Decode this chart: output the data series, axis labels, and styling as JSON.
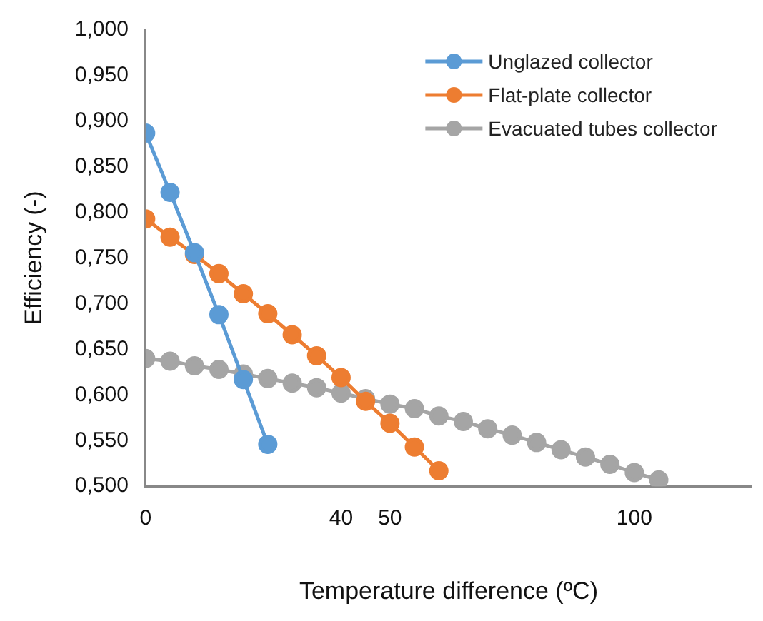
{
  "chart_data": {
    "type": "line",
    "xlabel": "Temperature difference (ºC)",
    "ylabel": "Efficiency (-)",
    "xlim": [
      0,
      124
    ],
    "xticks": [
      0,
      40,
      50,
      100
    ],
    "ylim": [
      0.5,
      1.0
    ],
    "yticks": [
      {
        "value": 0.5,
        "label": "0,500"
      },
      {
        "value": 0.55,
        "label": "0,550"
      },
      {
        "value": 0.6,
        "label": "0,600"
      },
      {
        "value": 0.65,
        "label": "0,650"
      },
      {
        "value": 0.7,
        "label": "0,700"
      },
      {
        "value": 0.75,
        "label": "0,750"
      },
      {
        "value": 0.8,
        "label": "0,800"
      },
      {
        "value": 0.85,
        "label": "0,850"
      },
      {
        "value": 0.9,
        "label": "0,900"
      },
      {
        "value": 0.95,
        "label": "0,950"
      },
      {
        "value": 1.0,
        "label": "1,000"
      }
    ],
    "grid": false,
    "legend": "top right",
    "marker": "circle",
    "line_style": "solid",
    "series": [
      {
        "name": "Unglazed collector",
        "color": "#5b9bd5",
        "x": [
          0,
          5,
          10,
          15,
          20,
          25
        ],
        "values": [
          0.887,
          0.822,
          0.756,
          0.688,
          0.617,
          0.546
        ]
      },
      {
        "name": "Flat-plate collector",
        "color": "#ed7d31",
        "x": [
          0,
          5,
          10,
          15,
          20,
          25,
          30,
          35,
          40,
          45,
          50,
          55,
          60
        ],
        "values": [
          0.793,
          0.773,
          0.754,
          0.733,
          0.711,
          0.689,
          0.666,
          0.643,
          0.619,
          0.593,
          0.569,
          0.543,
          0.517
        ]
      },
      {
        "name": "Evacuated tubes collector",
        "color": "#a5a5a5",
        "x": [
          0,
          5,
          10,
          15,
          20,
          25,
          30,
          35,
          40,
          45,
          50,
          55,
          60,
          65,
          70,
          75,
          80,
          85,
          90,
          95,
          100,
          105
        ],
        "values": [
          0.64,
          0.637,
          0.632,
          0.628,
          0.623,
          0.618,
          0.613,
          0.608,
          0.602,
          0.596,
          0.59,
          0.585,
          0.577,
          0.571,
          0.563,
          0.556,
          0.548,
          0.54,
          0.532,
          0.524,
          0.515,
          0.507
        ]
      }
    ]
  }
}
